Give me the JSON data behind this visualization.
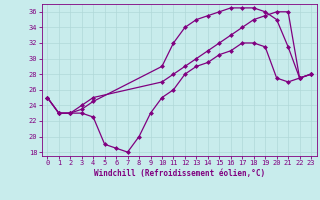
{
  "xlabel": "Windchill (Refroidissement éolien,°C)",
  "bg_color": "#c8ecec",
  "line_color": "#800080",
  "grid_color": "#b0d8d8",
  "xlim": [
    -0.5,
    23.5
  ],
  "ylim": [
    17.5,
    37.0
  ],
  "yticks": [
    18,
    20,
    22,
    24,
    26,
    28,
    30,
    32,
    34,
    36
  ],
  "xticks": [
    0,
    1,
    2,
    3,
    4,
    5,
    6,
    7,
    8,
    9,
    10,
    11,
    12,
    13,
    14,
    15,
    16,
    17,
    18,
    19,
    20,
    21,
    22,
    23
  ],
  "line1_x": [
    0,
    1,
    2,
    3,
    4,
    10,
    11,
    12,
    13,
    14,
    15,
    16,
    17,
    18,
    19,
    20,
    21,
    22,
    23
  ],
  "line1_y": [
    25,
    23,
    23,
    23.5,
    24.5,
    29,
    32,
    34,
    35,
    35.5,
    36,
    36.5,
    36.5,
    36.5,
    36,
    35,
    31.5,
    27.5,
    28
  ],
  "line2_x": [
    0,
    1,
    2,
    3,
    4,
    10,
    11,
    12,
    13,
    14,
    15,
    16,
    17,
    18,
    19,
    20,
    21,
    22,
    23
  ],
  "line2_y": [
    25,
    23,
    23,
    24,
    25,
    27,
    28,
    29,
    30,
    31,
    32,
    33,
    34,
    35,
    35.5,
    36,
    36,
    27.5,
    28
  ],
  "line3_x": [
    0,
    1,
    2,
    3,
    4,
    5,
    6,
    7,
    8,
    9,
    10,
    11,
    12,
    13,
    14,
    15,
    16,
    17,
    18,
    19,
    20,
    21,
    22,
    23
  ],
  "line3_y": [
    25,
    23,
    23,
    23,
    22.5,
    19,
    18.5,
    18,
    20,
    23,
    25,
    26,
    28,
    29,
    29.5,
    30.5,
    31,
    32,
    32,
    31.5,
    27.5,
    27,
    27.5,
    28
  ],
  "marker": "D",
  "markersize": 2.5,
  "linewidth": 0.9,
  "tick_fontsize": 5.0,
  "xlabel_fontsize": 5.5
}
